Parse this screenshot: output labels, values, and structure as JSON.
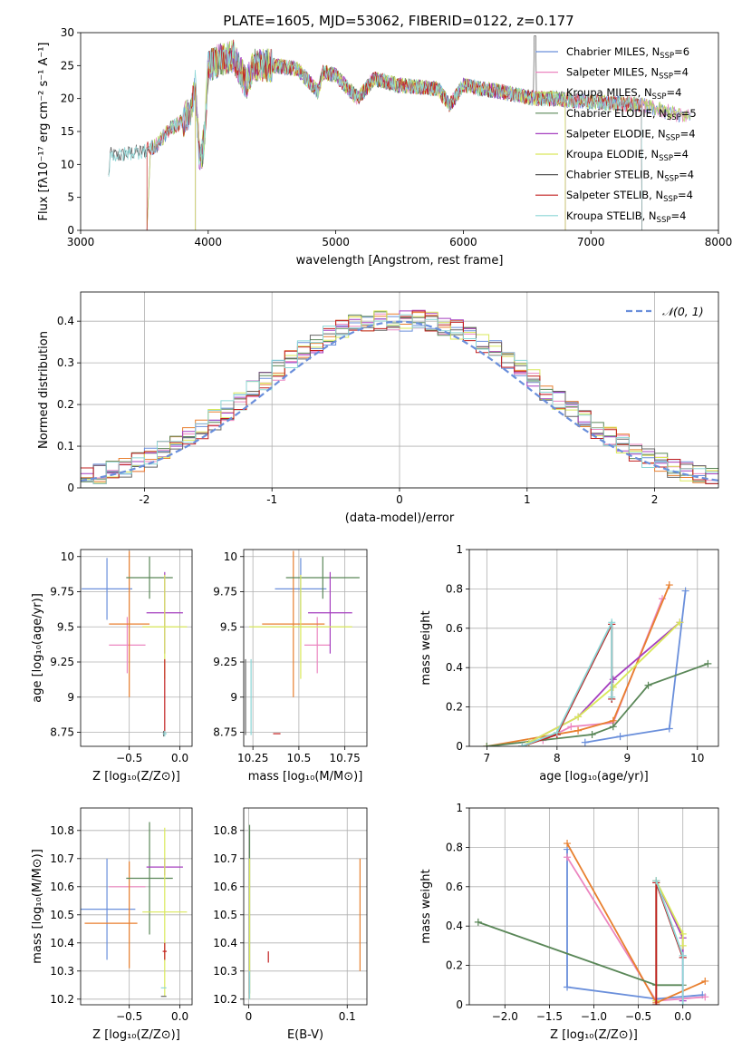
{
  "figure_title": "PLATE=1605, MJD=53062, FIBERID=0122, z=0.177",
  "model_colors": [
    "#6a8fdb",
    "#ec86c0",
    "#e87f2e",
    "#5a8758",
    "#a53fbf",
    "#d9e85a",
    "#666666",
    "#c21f1f",
    "#8cd6d6"
  ],
  "chart_data": [
    {
      "id": "spectrum",
      "type": "line",
      "title": "PLATE=1605, MJD=53062, FIBERID=0122, z=0.177",
      "xlabel": "wavelength [Angstrom, rest frame]",
      "ylabel": "Flux [fλ10⁻¹⁷ erg cm⁻² s⁻¹ A⁻¹]",
      "xlim": [
        3000,
        8000
      ],
      "ylim": [
        0,
        30
      ],
      "xticks": [
        3000,
        4000,
        5000,
        6000,
        7000,
        8000
      ],
      "yticks": [
        0,
        5,
        10,
        15,
        20,
        25,
        30
      ],
      "grid": false,
      "legend": "top-right",
      "legend_entries": [
        {
          "label": "Chabrier MILES, N",
          "sub": "SSP",
          "eq": "=6"
        },
        {
          "label": "Salpeter MILES, N",
          "sub": "SSP",
          "eq": "=4"
        },
        {
          "label": "Kroupa MILES, N",
          "sub": "SSP",
          "eq": "=4"
        },
        {
          "label": "Chabrier ELODIE, N",
          "sub": "SSP",
          "eq": "=5"
        },
        {
          "label": "Salpeter ELODIE, N",
          "sub": "SSP",
          "eq": "=4"
        },
        {
          "label": "Kroupa ELODIE, N",
          "sub": "SSP",
          "eq": "=4"
        },
        {
          "label": "Chabrier STELIB, N",
          "sub": "SSP",
          "eq": "=4"
        },
        {
          "label": "Salpeter STELIB, N",
          "sub": "SSP",
          "eq": "=4"
        },
        {
          "label": "Kroupa STELIB, N",
          "sub": "SSP",
          "eq": "=4"
        }
      ],
      "legend_colors": [
        "#6a8fdb",
        "#ec86c0",
        "#b3d65a",
        "#5a8758",
        "#a53fbf",
        "#d9e85a",
        "#555555",
        "#c21f1f",
        "#8cd6d6"
      ],
      "anchors": [
        [
          3220,
          8
        ],
        [
          3230,
          11.5
        ],
        [
          3300,
          11.3
        ],
        [
          3400,
          11.8
        ],
        [
          3500,
          12
        ],
        [
          3600,
          13
        ],
        [
          3700,
          15.5
        ],
        [
          3800,
          16.5
        ],
        [
          3870,
          18.5
        ],
        [
          3900,
          22
        ],
        [
          3935,
          10
        ],
        [
          3970,
          14
        ],
        [
          4000,
          25
        ],
        [
          4100,
          26
        ],
        [
          4200,
          26.5
        ],
        [
          4300,
          22
        ],
        [
          4350,
          25
        ],
        [
          4500,
          25
        ],
        [
          4700,
          24.5
        ],
        [
          4861,
          21
        ],
        [
          4900,
          24
        ],
        [
          5000,
          23.5
        ],
        [
          5175,
          20
        ],
        [
          5300,
          23
        ],
        [
          5500,
          22
        ],
        [
          5800,
          21.5
        ],
        [
          5893,
          19
        ],
        [
          6000,
          22
        ],
        [
          6300,
          21
        ],
        [
          6563,
          20
        ],
        [
          6700,
          20
        ],
        [
          7000,
          19.5
        ],
        [
          7400,
          19
        ],
        [
          7800,
          17
        ]
      ],
      "series": [
        {
          "start": 3550,
          "end": 7780,
          "cut_start": 3520,
          "cut_end": null
        },
        {
          "start": 3550,
          "end": 7780,
          "cut_start": 3520,
          "cut_end": null
        },
        {
          "start": 3550,
          "end": 7780,
          "cut_start": 3520,
          "cut_end": null
        },
        {
          "start": 3900,
          "end": 6800,
          "cut_start": 3900,
          "cut_end": 6800
        },
        {
          "start": 3900,
          "end": 6800,
          "cut_start": 3900,
          "cut_end": 6800
        },
        {
          "start": 3900,
          "end": 6800,
          "cut_start": 3900,
          "cut_end": 6800
        },
        {
          "start": 3220,
          "end": 7400,
          "cut_start": null,
          "cut_end": 7400
        },
        {
          "start": 3520,
          "end": 7400,
          "cut_start": 3520,
          "cut_end": 7400
        },
        {
          "start": 3220,
          "end": 7400,
          "cut_start": null,
          "cut_end": 7400
        }
      ]
    },
    {
      "id": "residuals",
      "type": "histogram",
      "xlabel": "(data-model)/error",
      "ylabel": "Normed distribution",
      "xlim": [
        -2.5,
        2.5
      ],
      "ylim": [
        0,
        0.47
      ],
      "xticks": [
        -2,
        -1,
        0,
        1,
        2
      ],
      "yticks": [
        0,
        0.1,
        0.2,
        0.3,
        0.4
      ],
      "grid": true,
      "legend": "top-right",
      "legend_entries": [
        "𝒩(0, 1)"
      ],
      "bin_width": 0.1,
      "series_count": 9,
      "curve": "gaussian",
      "curve_mean": 0,
      "curve_sigma": 1
    },
    {
      "id": "age_vs_Z",
      "type": "errorbar",
      "xlabel": "Z [log₁₀(Z/Z⊙)]",
      "ylabel": "age  [log₁₀(age/yr)]",
      "xlim": [
        -0.98,
        0.12
      ],
      "ylim": [
        8.65,
        10.05
      ],
      "xticks": [
        -0.5,
        0.0
      ],
      "xticklabels": [
        "−0.5",
        "0.0"
      ],
      "yticks": [
        8.75,
        9.0,
        9.25,
        9.5,
        9.75,
        10.0
      ],
      "grid": true,
      "points": [
        {
          "x": -0.72,
          "y": 9.77,
          "xerr": 0.25,
          "yerr": 0.22,
          "c": 0
        },
        {
          "x": -0.52,
          "y": 9.37,
          "xerr": 0.18,
          "yerr": 0.2,
          "c": 1
        },
        {
          "x": -0.5,
          "y": 9.52,
          "xerr": 0.2,
          "yerr": 0.52,
          "c": 2
        },
        {
          "x": -0.3,
          "y": 9.85,
          "xerr": 0.23,
          "yerr": 0.15,
          "c": 3
        },
        {
          "x": -0.15,
          "y": 9.6,
          "xerr": 0.18,
          "yerr": 0.29,
          "c": 4
        },
        {
          "x": -0.15,
          "y": 9.5,
          "xerr": 0.22,
          "yerr": 0.37,
          "c": 5
        },
        {
          "x": -0.16,
          "y": 8.74,
          "xerr": 0.0,
          "yerr": 0.02,
          "c": 6
        },
        {
          "x": -0.15,
          "y": 9.0,
          "xerr": 0.0,
          "yerr": 0.27,
          "c": 7
        },
        {
          "x": -0.15,
          "y": 8.74,
          "xerr": 0.02,
          "yerr": 0.02,
          "c": 8
        }
      ]
    },
    {
      "id": "age_vs_mass",
      "type": "errorbar",
      "xlabel": "mass [log₁₀(M/M⊙)]",
      "ylabel": "",
      "xlim": [
        10.2,
        10.87
      ],
      "ylim": [
        8.65,
        10.05
      ],
      "xticks": [
        10.25,
        10.5,
        10.75
      ],
      "yticks": [
        8.75,
        9.0,
        9.25,
        9.5,
        9.75,
        10.0
      ],
      "grid": true,
      "points": [
        {
          "x": 10.51,
          "y": 9.77,
          "xerr": 0.14,
          "yerr": 0.22,
          "c": 0
        },
        {
          "x": 10.6,
          "y": 9.37,
          "xerr": 0.07,
          "yerr": 0.2,
          "c": 1
        },
        {
          "x": 10.47,
          "y": 9.52,
          "xerr": 0.17,
          "yerr": 0.52,
          "c": 2
        },
        {
          "x": 10.63,
          "y": 9.85,
          "xerr": 0.2,
          "yerr": 0.15,
          "c": 3
        },
        {
          "x": 10.67,
          "y": 9.6,
          "xerr": 0.12,
          "yerr": 0.29,
          "c": 4
        },
        {
          "x": 10.51,
          "y": 9.5,
          "xerr": 0.28,
          "yerr": 0.37,
          "c": 5
        },
        {
          "x": 10.21,
          "y": 9.0,
          "xerr": 0.0,
          "yerr": 0.27,
          "c": 6
        },
        {
          "x": 10.38,
          "y": 8.74,
          "xerr": 0.02,
          "yerr": 0.0,
          "c": 7
        },
        {
          "x": 10.24,
          "y": 9.0,
          "xerr": 0.0,
          "yerr": 0.27,
          "c": 8
        }
      ]
    },
    {
      "id": "mass_weight_vs_age",
      "type": "line",
      "xlabel": "age  [log₁₀(age/yr)]",
      "ylabel": "mass weight",
      "xlim": [
        6.75,
        10.3
      ],
      "ylim": [
        0,
        1
      ],
      "xticks": [
        7,
        8,
        9,
        10
      ],
      "yticks": [
        0,
        0.2,
        0.4,
        0.6,
        0.8,
        1.0
      ],
      "grid": true,
      "series": [
        {
          "c": 0,
          "x": [
            8.4,
            8.9,
            9.6,
            9.83
          ],
          "y": [
            0.02,
            0.05,
            0.09,
            0.79
          ]
        },
        {
          "c": 1,
          "x": [
            7.8,
            8.2,
            8.8,
            9.5
          ],
          "y": [
            0.03,
            0.1,
            0.12,
            0.75
          ]
        },
        {
          "c": 2,
          "x": [
            7.0,
            8.3,
            8.8,
            9.6
          ],
          "y": [
            0.0,
            0.08,
            0.13,
            0.82
          ]
        },
        {
          "c": 3,
          "x": [
            7.0,
            8.5,
            8.8,
            9.3,
            10.15
          ],
          "y": [
            0.0,
            0.06,
            0.1,
            0.31,
            0.42
          ]
        },
        {
          "c": 4,
          "x": [
            7.6,
            8.3,
            8.8,
            9.75
          ],
          "y": [
            0.02,
            0.15,
            0.34,
            0.63
          ]
        },
        {
          "c": 5,
          "x": [
            7.6,
            8.3,
            8.8,
            9.75
          ],
          "y": [
            0.02,
            0.15,
            0.3,
            0.63
          ]
        },
        {
          "c": 6,
          "x": [
            7.5,
            8.0,
            8.78,
            8.78
          ],
          "y": [
            0.0,
            0.06,
            0.62,
            0.24
          ]
        },
        {
          "c": 7,
          "x": [
            7.5,
            8.0,
            8.78,
            8.78
          ],
          "y": [
            0.0,
            0.06,
            0.62,
            0.24
          ]
        },
        {
          "c": 8,
          "x": [
            7.5,
            8.0,
            8.78,
            8.78
          ],
          "y": [
            0.0,
            0.07,
            0.63,
            0.25
          ]
        }
      ]
    },
    {
      "id": "mass_vs_Z",
      "type": "errorbar",
      "xlabel": "Z [log₁₀(Z/Z⊙)]",
      "ylabel": "mass [log₁₀(M/M⊙)]",
      "xlim": [
        -0.98,
        0.12
      ],
      "ylim": [
        10.18,
        10.88
      ],
      "xticks": [
        -0.5,
        0.0
      ],
      "xticklabels": [
        "−0.5",
        "0.0"
      ],
      "yticks": [
        10.2,
        10.3,
        10.4,
        10.5,
        10.6,
        10.7,
        10.8
      ],
      "grid": true,
      "points": [
        {
          "x": -0.72,
          "y": 10.52,
          "xerr": 0.28,
          "yerr": 0.18,
          "c": 0
        },
        {
          "x": -0.52,
          "y": 10.6,
          "xerr": 0.18,
          "yerr": 0.0,
          "c": 1
        },
        {
          "x": -0.68,
          "y": 10.47,
          "xerr": 0.26,
          "yerr": 0.0,
          "c": 2
        },
        {
          "x": -0.5,
          "y": 10.5,
          "xerr": 0.0,
          "yerr": 0.19,
          "c": 2
        },
        {
          "x": -0.3,
          "y": 10.63,
          "xerr": 0.23,
          "yerr": 0.2,
          "c": 3
        },
        {
          "x": -0.15,
          "y": 10.67,
          "xerr": 0.18,
          "yerr": 0.03,
          "c": 4
        },
        {
          "x": -0.15,
          "y": 10.51,
          "xerr": 0.22,
          "yerr": 0.3,
          "c": 5
        },
        {
          "x": -0.16,
          "y": 10.21,
          "xerr": 0.0,
          "yerr": 0.0,
          "c": 6
        },
        {
          "x": -0.15,
          "y": 10.37,
          "xerr": 0.02,
          "yerr": 0.03,
          "c": 7
        },
        {
          "x": -0.16,
          "y": 10.24,
          "xerr": 0.0,
          "yerr": 0.0,
          "c": 8
        }
      ]
    },
    {
      "id": "mass_vs_EBV",
      "type": "errorbar",
      "xlabel": "E(B-V)",
      "ylabel": "",
      "xlim": [
        -0.005,
        0.12
      ],
      "ylim": [
        10.18,
        10.88
      ],
      "xticks": [
        0.0,
        0.1
      ],
      "yticks": [
        10.2,
        10.3,
        10.4,
        10.5,
        10.6,
        10.7,
        10.8
      ],
      "grid": true,
      "points": [
        {
          "x": 0.001,
          "y": 10.52,
          "xerr": 0.0,
          "yerr": 0.3,
          "c": 3
        },
        {
          "x": 0.001,
          "y": 10.45,
          "xerr": 0.0,
          "yerr": 0.25,
          "c": 5
        },
        {
          "x": 0.001,
          "y": 10.25,
          "xerr": 0.0,
          "yerr": 0.05,
          "c": 8
        },
        {
          "x": 0.02,
          "y": 10.35,
          "xerr": 0.0,
          "yerr": 0.02,
          "c": 7
        },
        {
          "x": 0.113,
          "y": 10.5,
          "xerr": 0.0,
          "yerr": 0.2,
          "c": 2
        }
      ]
    },
    {
      "id": "mass_weight_vs_Z",
      "type": "line",
      "xlabel": "Z [log₁₀(Z/Z⊙)]",
      "ylabel": "mass weight",
      "xlim": [
        -2.4,
        0.4
      ],
      "ylim": [
        0,
        1
      ],
      "xticks": [
        -2.0,
        -1.5,
        -1.0,
        -0.5,
        0.0
      ],
      "xticklabels": [
        "−2.0",
        "−1.5",
        "−1.0",
        "−0.5",
        "0.0"
      ],
      "yticks": [
        0,
        0.2,
        0.4,
        0.6,
        0.8,
        1.0
      ],
      "grid": true,
      "series": [
        {
          "c": 0,
          "x": [
            -1.3,
            -1.3,
            -0.3,
            0.22
          ],
          "y": [
            0.79,
            0.09,
            0.03,
            0.05
          ]
        },
        {
          "c": 1,
          "x": [
            -1.3,
            -0.3,
            0.25
          ],
          "y": [
            0.75,
            0.02,
            0.04
          ]
        },
        {
          "c": 2,
          "x": [
            -1.3,
            -0.3,
            0.25
          ],
          "y": [
            0.82,
            0.01,
            0.12
          ]
        },
        {
          "c": 3,
          "x": [
            -2.3,
            -0.3,
            0.0
          ],
          "y": [
            0.42,
            0.1,
            0.1
          ]
        },
        {
          "c": 4,
          "x": [
            -0.3,
            0.0,
            0.0
          ],
          "y": [
            0.63,
            0.34,
            0.02
          ]
        },
        {
          "c": 5,
          "x": [
            -0.3,
            -0.3,
            0.0,
            0.0
          ],
          "y": [
            0.02,
            0.63,
            0.36,
            0.3
          ]
        },
        {
          "c": 6,
          "x": [
            -0.3,
            -0.3,
            0.0
          ],
          "y": [
            0.0,
            0.62,
            0.24
          ]
        },
        {
          "c": 7,
          "x": [
            -0.3,
            -0.3,
            0.0
          ],
          "y": [
            0.0,
            0.62,
            0.24
          ]
        },
        {
          "c": 8,
          "x": [
            -0.3,
            0.0,
            0.0
          ],
          "y": [
            0.63,
            0.25,
            0.0
          ]
        }
      ]
    }
  ]
}
